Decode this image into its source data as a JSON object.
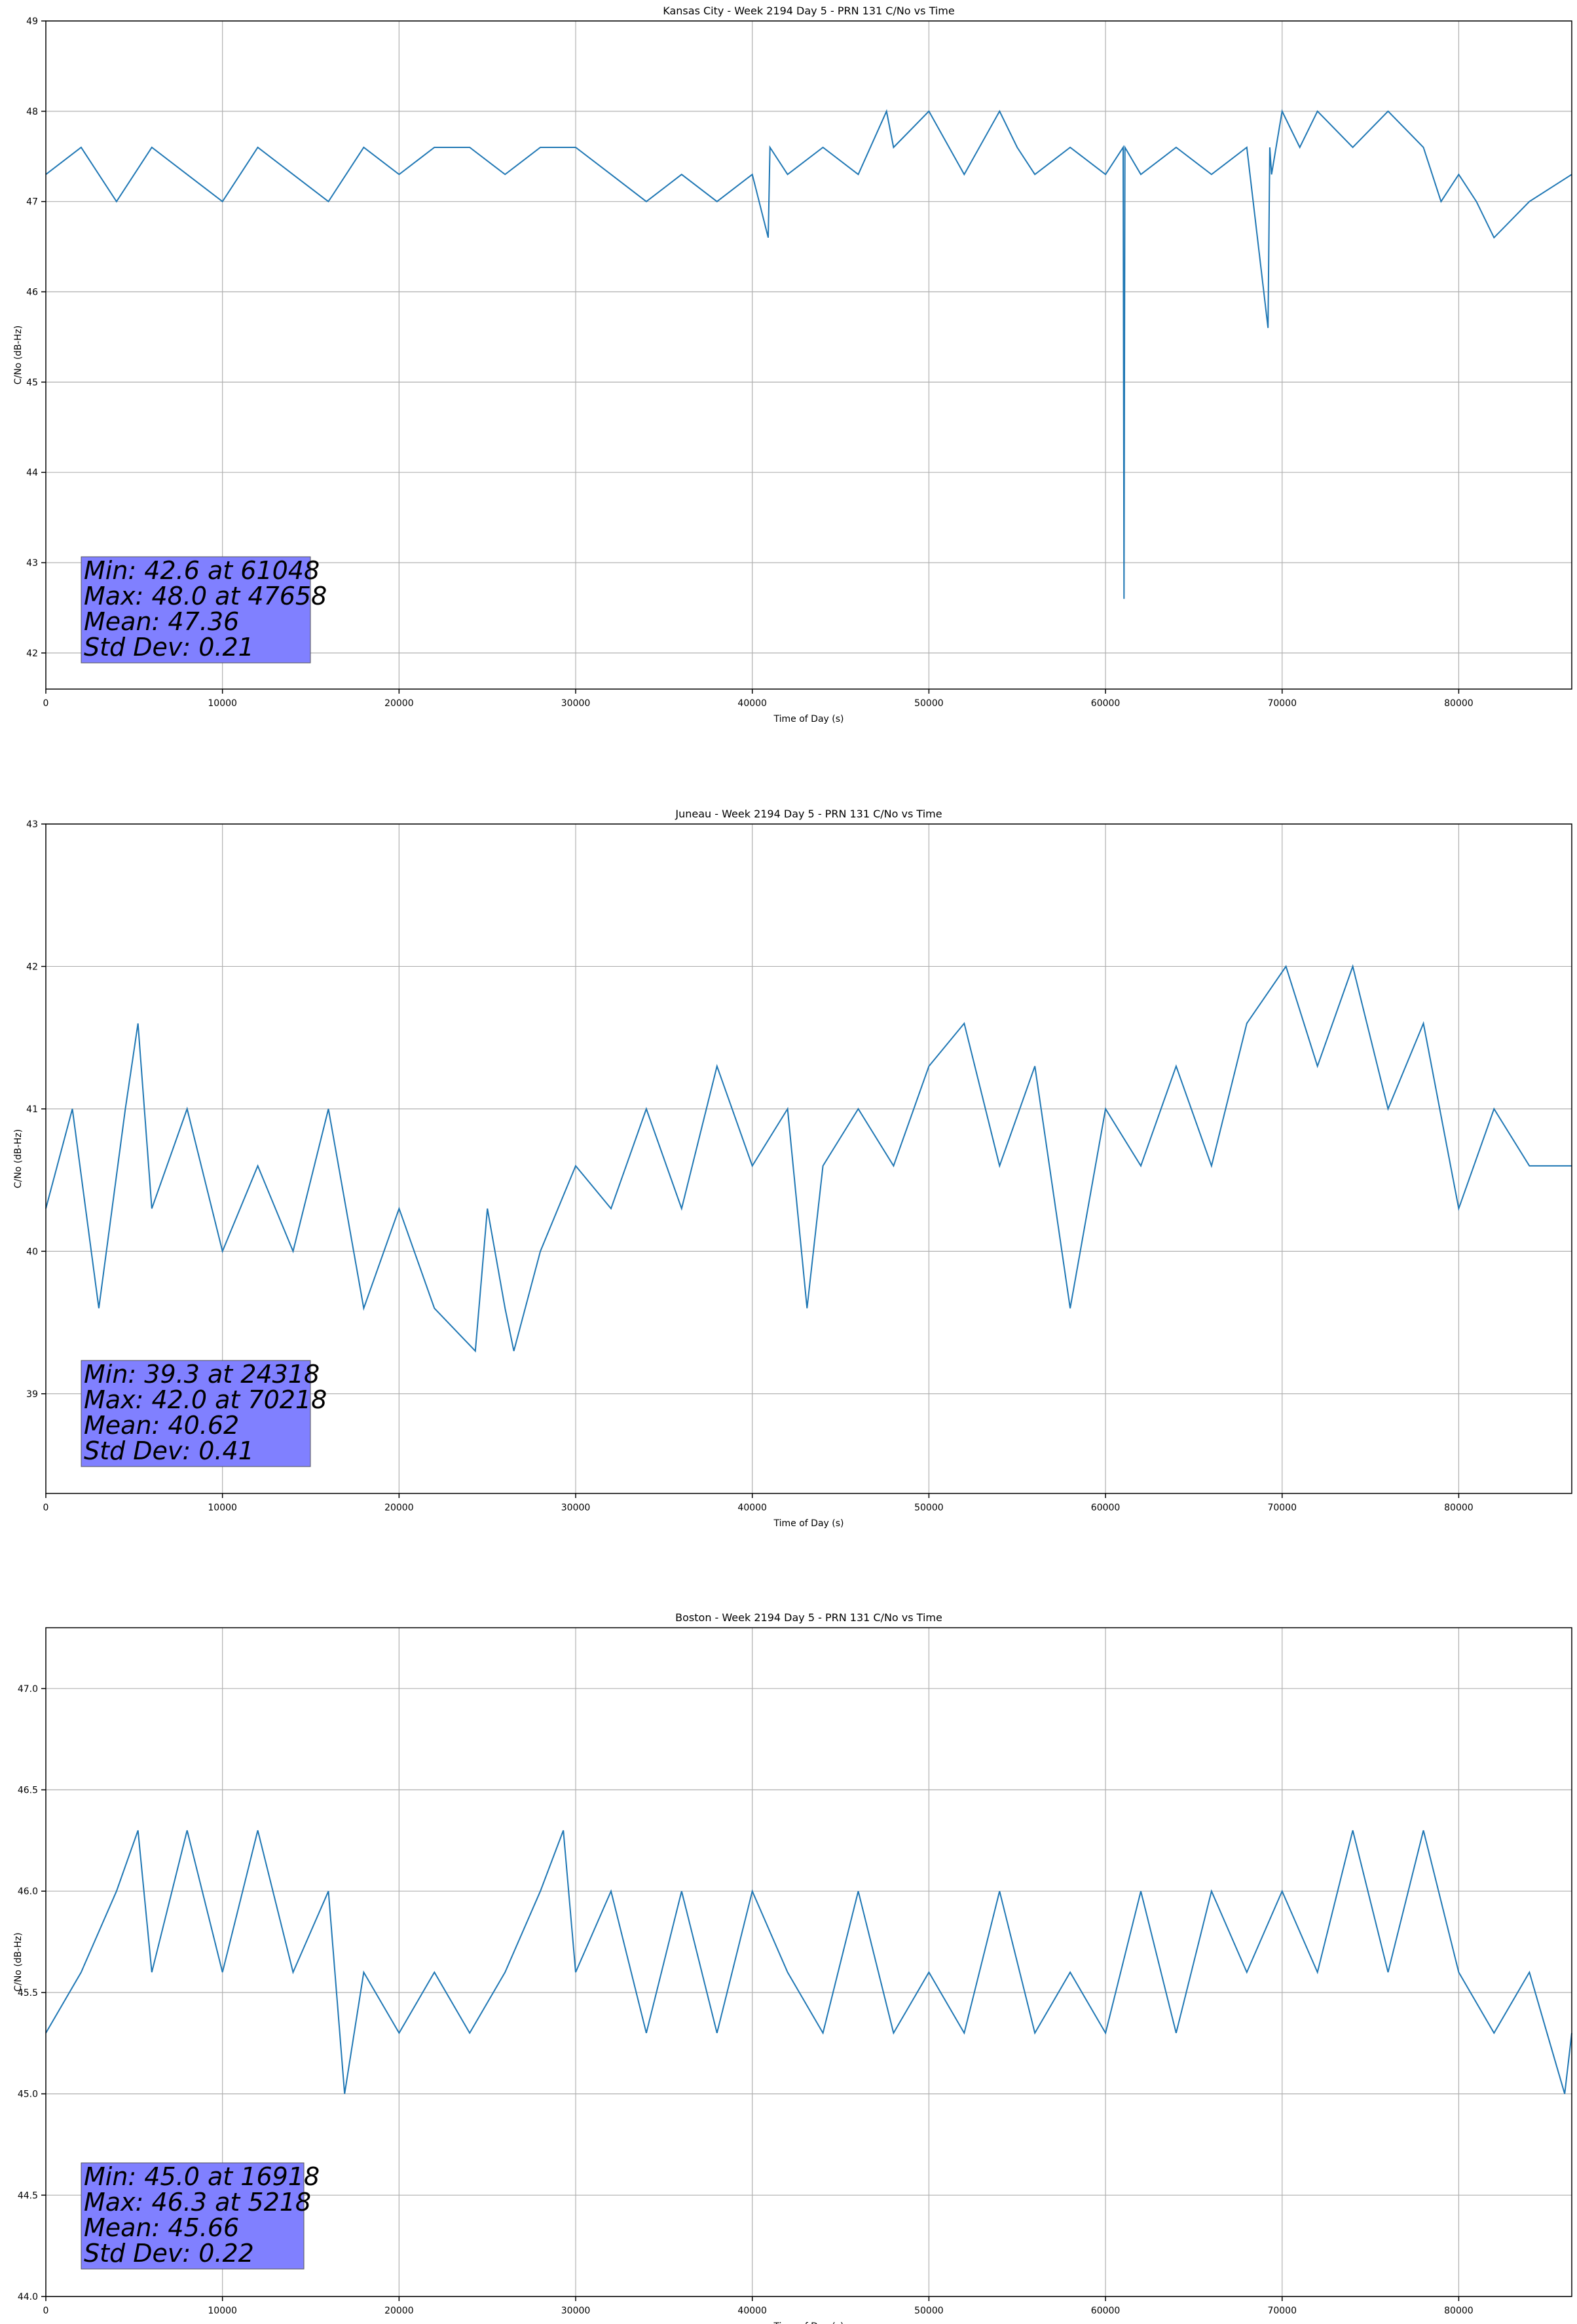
{
  "chart_data": [
    {
      "type": "line",
      "title": "Kansas City - Week 2194 Day 5 - PRN 131 C/No vs Time",
      "xlabel": "Time of Day (s)",
      "ylabel": "C/No (dB-Hz)",
      "xlim": [
        0,
        86400
      ],
      "ylim": [
        41.6,
        49
      ],
      "xticks": [
        0,
        10000,
        20000,
        30000,
        40000,
        50000,
        60000,
        70000,
        80000
      ],
      "xtick_labels": [
        "0",
        "10000",
        "20000",
        "30000",
        "40000",
        "50000",
        "60000",
        "70000",
        "80000"
      ],
      "yticks": [
        42,
        43,
        44,
        45,
        46,
        47,
        48,
        49
      ],
      "ytick_labels": [
        "42",
        "43",
        "44",
        "45",
        "46",
        "47",
        "48",
        "49"
      ],
      "grid": true,
      "color": "#1f77b4",
      "stats": [
        "Min: 42.6 at 61048",
        "Max: 48.0 at 47658",
        "Mean: 47.36",
        "Std Dev: 0.21"
      ],
      "series": [
        {
          "x": [
            0,
            2000,
            4000,
            6000,
            8000,
            10000,
            12000,
            14000,
            16000,
            18000,
            20000,
            22000,
            24000,
            26000,
            28000,
            30000,
            32000,
            34000,
            36000,
            38000,
            40000,
            40900,
            41000,
            42000,
            44000,
            46000,
            47600,
            48000,
            50000,
            52000,
            54000,
            55000,
            56000,
            58000,
            60000,
            61000,
            61048,
            61100,
            62000,
            64000,
            66000,
            68000,
            69200,
            69300,
            69400,
            70000,
            71000,
            72000,
            74000,
            76000,
            78000,
            79000,
            80000,
            81000,
            82000,
            84000,
            86400
          ],
          "y": [
            47.3,
            47.6,
            47.0,
            47.6,
            47.3,
            47.0,
            47.6,
            47.3,
            47.0,
            47.6,
            47.3,
            47.6,
            47.6,
            47.3,
            47.6,
            47.6,
            47.3,
            47.0,
            47.3,
            47.0,
            47.3,
            46.6,
            47.6,
            47.3,
            47.6,
            47.3,
            48.0,
            47.6,
            48.0,
            47.3,
            48.0,
            47.6,
            47.3,
            47.6,
            47.3,
            47.6,
            42.6,
            47.6,
            47.3,
            47.6,
            47.3,
            47.6,
            45.6,
            47.6,
            47.3,
            48.0,
            47.6,
            48.0,
            47.6,
            48.0,
            47.6,
            47.0,
            47.3,
            47.0,
            46.6,
            47.0,
            47.3
          ]
        }
      ]
    },
    {
      "type": "line",
      "title": "Juneau - Week 2194 Day 5 - PRN 131 C/No vs Time",
      "xlabel": "Time of Day (s)",
      "ylabel": "C/No (dB-Hz)",
      "xlim": [
        0,
        86400
      ],
      "ylim": [
        38.3,
        43
      ],
      "xticks": [
        0,
        10000,
        20000,
        30000,
        40000,
        50000,
        60000,
        70000,
        80000
      ],
      "xtick_labels": [
        "0",
        "10000",
        "20000",
        "30000",
        "40000",
        "50000",
        "60000",
        "70000",
        "80000"
      ],
      "yticks": [
        39,
        40,
        41,
        42,
        43
      ],
      "ytick_labels": [
        "39",
        "40",
        "41",
        "42",
        "43"
      ],
      "grid": true,
      "color": "#1f77b4",
      "stats": [
        "Min: 39.3 at 24318",
        "Max: 42.0 at 70218",
        "Mean: 40.62",
        "Std Dev: 0.41"
      ],
      "series": [
        {
          "x": [
            0,
            1500,
            3000,
            4500,
            5218,
            6000,
            8000,
            10000,
            12000,
            14000,
            16000,
            18000,
            20000,
            22000,
            24318,
            25000,
            26000,
            26500,
            28000,
            30000,
            32000,
            34000,
            36000,
            38000,
            40000,
            42000,
            43100,
            44000,
            46000,
            48000,
            50000,
            52000,
            54000,
            56000,
            58000,
            60000,
            62000,
            64000,
            66000,
            68000,
            70218,
            72000,
            74000,
            76000,
            78000,
            80000,
            82000,
            84000,
            86400
          ],
          "y": [
            40.3,
            41.0,
            39.6,
            41.0,
            41.6,
            40.3,
            41.0,
            40.0,
            40.6,
            40.0,
            41.0,
            39.6,
            40.3,
            39.6,
            39.3,
            40.3,
            39.6,
            39.3,
            40.0,
            40.6,
            40.3,
            41.0,
            40.3,
            41.3,
            40.6,
            41.0,
            39.6,
            40.6,
            41.0,
            40.6,
            41.3,
            41.6,
            40.6,
            41.3,
            39.6,
            41.0,
            40.6,
            41.3,
            40.6,
            41.6,
            42.0,
            41.3,
            42.0,
            41.0,
            41.6,
            40.3,
            41.0,
            40.6,
            40.6
          ]
        }
      ]
    },
    {
      "type": "line",
      "title": "Boston - Week 2194 Day 5 - PRN 131 C/No vs Time",
      "xlabel": "Time of Day (s)",
      "ylabel": "C/No (dB-Hz)",
      "xlim": [
        0,
        86400
      ],
      "ylim": [
        44.0,
        47.3
      ],
      "xticks": [
        0,
        10000,
        20000,
        30000,
        40000,
        50000,
        60000,
        70000,
        80000
      ],
      "xtick_labels": [
        "0",
        "10000",
        "20000",
        "30000",
        "40000",
        "50000",
        "60000",
        "70000",
        "80000"
      ],
      "yticks": [
        44.0,
        44.5,
        45.0,
        45.5,
        46.0,
        46.5,
        47.0
      ],
      "ytick_labels": [
        "44.0",
        "44.5",
        "45.0",
        "45.5",
        "46.0",
        "46.5",
        "47.0"
      ],
      "grid": true,
      "color": "#1f77b4",
      "stats": [
        "Min: 45.0 at 16918",
        "Max: 46.3 at 5218",
        "Mean: 45.66",
        "Std Dev: 0.22"
      ],
      "series": [
        {
          "x": [
            0,
            2000,
            4000,
            5218,
            6000,
            8000,
            10000,
            12000,
            14000,
            16000,
            16918,
            18000,
            20000,
            22000,
            24000,
            26000,
            28000,
            29300,
            30000,
            32000,
            34000,
            36000,
            38000,
            40000,
            42000,
            44000,
            46000,
            48000,
            50000,
            52000,
            54000,
            56000,
            58000,
            60000,
            62000,
            64000,
            66000,
            68000,
            70000,
            72000,
            74000,
            76000,
            78000,
            80000,
            82000,
            84000,
            85000,
            86000,
            86400
          ],
          "y": [
            45.3,
            45.6,
            46.0,
            46.3,
            45.6,
            46.3,
            45.6,
            46.3,
            45.6,
            46.0,
            45.0,
            45.6,
            45.3,
            45.6,
            45.3,
            45.6,
            46.0,
            46.3,
            45.6,
            46.0,
            45.3,
            46.0,
            45.3,
            46.0,
            45.6,
            45.3,
            46.0,
            45.3,
            45.6,
            45.3,
            46.0,
            45.3,
            45.6,
            45.3,
            46.0,
            45.3,
            46.0,
            45.6,
            46.0,
            45.6,
            46.3,
            45.6,
            46.3,
            45.6,
            45.3,
            45.6,
            45.3,
            45.0,
            45.3
          ]
        }
      ]
    }
  ]
}
